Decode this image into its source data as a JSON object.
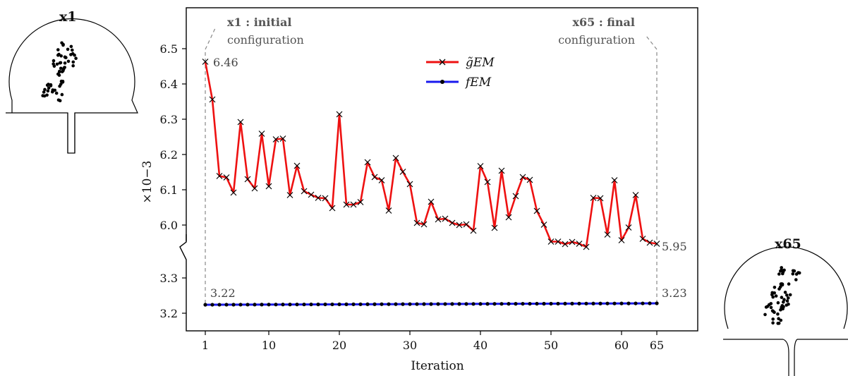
{
  "chart_data": {
    "type": "line",
    "xlabel": "Iteration",
    "y_multiplier": "×10−3",
    "x_ticks": [
      1,
      10,
      20,
      30,
      40,
      50,
      60,
      65
    ],
    "y_ticks_upper": [
      "6.0",
      "6.1",
      "6.2",
      "6.3",
      "6.4",
      "6.5"
    ],
    "y_ticks_lower": [
      "3.2",
      "3.3"
    ],
    "ylim_upper": [
      5.93,
      6.58
    ],
    "ylim_lower": [
      3.18,
      3.36
    ],
    "axis_break": true,
    "series": [
      {
        "name": "g̃EM",
        "color": "#ee1111",
        "marker": "x",
        "x": [
          1,
          2,
          3,
          4,
          5,
          6,
          7,
          8,
          9,
          10,
          11,
          12,
          13,
          14,
          15,
          16,
          17,
          18,
          19,
          20,
          21,
          22,
          23,
          24,
          25,
          26,
          27,
          28,
          29,
          30,
          31,
          32,
          33,
          34,
          35,
          36,
          37,
          38,
          39,
          40,
          41,
          42,
          43,
          44,
          45,
          46,
          47,
          48,
          49,
          50,
          51,
          52,
          53,
          54,
          55,
          56,
          57,
          58,
          59,
          60,
          61,
          62,
          63,
          64,
          65
        ],
        "values": [
          6.463,
          6.356,
          6.139,
          6.135,
          6.092,
          6.292,
          6.13,
          6.104,
          6.259,
          6.11,
          6.243,
          6.245,
          6.085,
          6.168,
          6.096,
          6.086,
          6.077,
          6.076,
          6.048,
          6.314,
          6.058,
          6.058,
          6.065,
          6.178,
          6.136,
          6.127,
          6.041,
          6.19,
          6.151,
          6.116,
          6.006,
          6.002,
          6.066,
          6.016,
          6.018,
          6.006,
          6.0,
          6.002,
          5.984,
          6.167,
          6.122,
          5.992,
          6.154,
          6.022,
          6.082,
          6.136,
          6.128,
          6.04,
          6.001,
          5.953,
          5.953,
          5.946,
          5.952,
          5.947,
          5.938,
          6.077,
          6.076,
          5.973,
          6.127,
          5.957,
          5.993,
          6.085,
          5.961,
          5.95,
          5.947
        ]
      },
      {
        "name": "fEM",
        "color": "#1a1aee",
        "marker": "dot",
        "x": [
          1,
          65
        ],
        "values": [
          3.224,
          3.228
        ]
      }
    ],
    "annotations": {
      "start_value": "6.46",
      "end_value": "5.95",
      "start_f_value": "3.22",
      "end_f_value": "3.23",
      "start_label_line1": "x1 : initial",
      "start_label_line2": "configuration",
      "end_label_line1": "x65 : final",
      "end_label_line2": "configuration"
    },
    "legend": {
      "placement": "top-center",
      "entries": [
        "g̃EM",
        "fEM"
      ]
    },
    "configs": {
      "left_title": "x1",
      "right_title": "x65"
    }
  }
}
